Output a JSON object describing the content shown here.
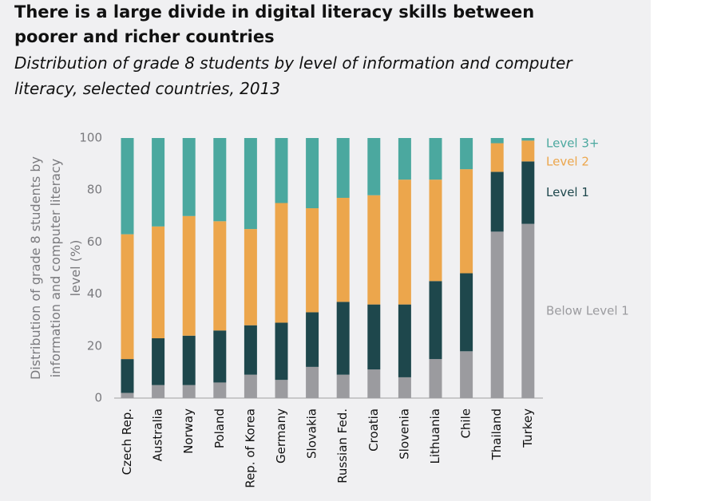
{
  "chart_data": {
    "type": "stacked_bar",
    "title": "There is a large divide in digital literacy skills between poorer and richer countries",
    "subtitle": "Distribution of grade 8 students by level of information and computer literacy, selected countries, 2013",
    "y_label": "Distribution of grade 8 students by information and computer literacy level (%)",
    "categories": [
      "Czech Rep.",
      "Australia",
      "Norway",
      "Poland",
      "Rep. of Korea",
      "Germany",
      "Slovakia",
      "Russian Fed.",
      "Croatia",
      "Slovenia",
      "Lithuania",
      "Chile",
      "Thailand",
      "Turkey"
    ],
    "series": [
      {
        "name": "Below Level 1",
        "color": "#9b9b9f",
        "values": [
          2,
          5,
          5,
          6,
          9,
          7,
          12,
          9,
          11,
          8,
          15,
          18,
          64,
          67
        ]
      },
      {
        "name": "Level 1",
        "color": "#1e474c",
        "values": [
          13,
          18,
          19,
          20,
          19,
          22,
          21,
          28,
          25,
          28,
          30,
          30,
          23,
          24
        ]
      },
      {
        "name": "Level 2",
        "color": "#eca64c",
        "values": [
          48,
          43,
          46,
          42,
          37,
          46,
          40,
          40,
          42,
          48,
          39,
          40,
          11,
          8
        ]
      },
      {
        "name": "Level 3+",
        "color": "#4ba89f",
        "values": [
          37,
          34,
          30,
          32,
          35,
          25,
          27,
          23,
          22,
          16,
          16,
          12,
          2,
          1
        ]
      }
    ],
    "ylim": [
      0,
      100
    ],
    "yticks": [
      0,
      20,
      40,
      60,
      80,
      100
    ]
  }
}
